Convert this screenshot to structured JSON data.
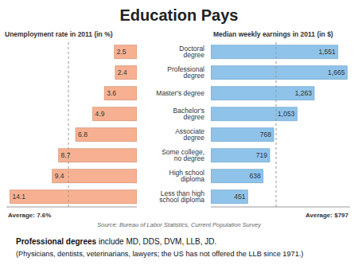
{
  "title": "Education Pays",
  "chart_data": [
    {
      "type": "bar",
      "orientation": "horizontal",
      "title": "Unemployment rate in 2011 (in %)",
      "categories": [
        "Doctoral degree",
        "Professional degree",
        "Master's degree",
        "Bachelor's degree",
        "Associate degree",
        "Some college, no degree",
        "High school diploma",
        "Less than high school diploma"
      ],
      "values": [
        2.5,
        2.4,
        3.6,
        4.9,
        6.8,
        8.7,
        9.4,
        14.1
      ],
      "color": "#f7b192",
      "data_labels": true,
      "tick_labels": false,
      "xlim": [
        0,
        14.5
      ],
      "average": {
        "value": 7.6,
        "label": "Average: 7.6%"
      }
    },
    {
      "type": "bar",
      "orientation": "horizontal",
      "title": "Median weekly earnings in 2011 (in $)",
      "categories": [
        "Doctoral degree",
        "Professional degree",
        "Master's degree",
        "Bachelor's degree",
        "Associate degree",
        "Some college, no degree",
        "High school diploma",
        "Less than high school diploma"
      ],
      "values": [
        1551,
        1665,
        1263,
        1053,
        768,
        719,
        638,
        451
      ],
      "value_labels": [
        "1,551",
        "1,665",
        "1,263",
        "1,053",
        "768",
        "719",
        "638",
        "451"
      ],
      "color": "#8fc3ea",
      "data_labels": true,
      "tick_labels": "y",
      "xlim": [
        0,
        1700
      ],
      "average": {
        "value": 797,
        "label": "Average: $797"
      }
    }
  ],
  "source": "Source: Bureau of Labor Statistics, Current Population Survey",
  "caption": {
    "bold_lead": "Professional degrees",
    "text": "include MD, DDS, DVM, LLB, JD.",
    "line2": "(Physicians, dentists, veterinarians, lawyers; the US has not offered the LLB since 1971.)"
  }
}
